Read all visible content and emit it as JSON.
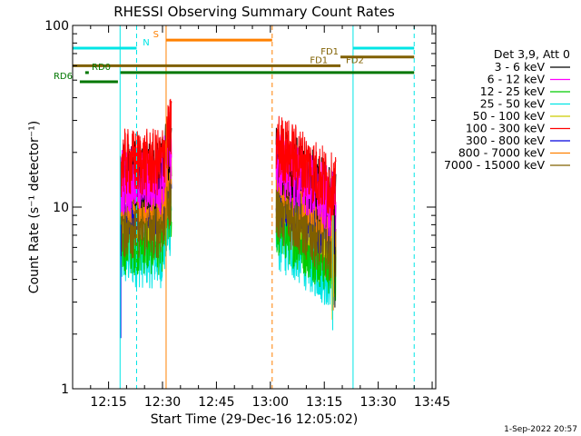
{
  "chart_data": {
    "type": "line",
    "title": "RHESSI Observing Summary Count Rates",
    "xlabel": "Start Time (29-Dec-16 12:05:02)",
    "ylabel": "Count Rate (s⁻¹ detector⁻¹)",
    "yscale": "log",
    "ylim": [
      1,
      100
    ],
    "xlim_minutes_from_12h": [
      5,
      106
    ],
    "x_ticks": [
      {
        "t": 15,
        "label": "12:15"
      },
      {
        "t": 30,
        "label": "12:30"
      },
      {
        "t": 45,
        "label": "12:45"
      },
      {
        "t": 60,
        "label": "13:00"
      },
      {
        "t": 75,
        "label": "13:15"
      },
      {
        "t": 90,
        "label": "13:30"
      },
      {
        "t": 105,
        "label": "13:45"
      }
    ],
    "y_ticks": [
      {
        "v": 1,
        "label": "1"
      },
      {
        "v": 10,
        "label": "10"
      },
      {
        "v": 100,
        "label": "100"
      }
    ],
    "legend_header": "Det 3,9, Att 0",
    "series": [
      {
        "name": "3 - 6 keV",
        "color": "#000000",
        "level": 15.0
      },
      {
        "name": "6 - 12 keV",
        "color": "#ff00ff",
        "level": 14.0
      },
      {
        "name": "12 - 25 keV",
        "color": "#00cc00",
        "level": 6.5
      },
      {
        "name": "25 - 50 keV",
        "color": "#00e5e5",
        "level": 5.5
      },
      {
        "name": "50 - 100 keV",
        "color": "#cccc00",
        "level": 10.0
      },
      {
        "name": "100 - 300 keV",
        "color": "#ff0000",
        "level": 17.5
      },
      {
        "name": "300 - 800 keV",
        "color": "#0000dd",
        "level": 10.0
      },
      {
        "name": "800 - 7000 keV",
        "color": "#ff8000",
        "level": 12.5
      },
      {
        "name": "7000 - 15000 keV",
        "color": "#806000",
        "level": 8.0
      }
    ],
    "data_intervals": [
      {
        "start": 18.3,
        "end": 32.5,
        "ramp": 0.35
      },
      {
        "start": 61.6,
        "end": 78.2,
        "ramp": 0.0
      }
    ],
    "vertical_lines": [
      {
        "t": 5.0,
        "color": "#00e5e5",
        "style": "solid"
      },
      {
        "t": 18.2,
        "color": "#00e5e5",
        "style": "solid"
      },
      {
        "t": 22.8,
        "color": "#00e5e5",
        "style": "dashed"
      },
      {
        "t": 31.0,
        "color": "#ff8000",
        "style": "solid"
      },
      {
        "t": 60.5,
        "color": "#ff8000",
        "style": "dashed"
      },
      {
        "t": 83.0,
        "color": "#00e5e5",
        "style": "solid"
      },
      {
        "t": 100.0,
        "color": "#00e5e5",
        "style": "dashed"
      }
    ],
    "flag_bars": [
      {
        "label": "N",
        "color": "#00e5e5",
        "t0": 5.0,
        "t1": 22.8,
        "v": 75,
        "label_t": 24.0,
        "label_side": "right"
      },
      {
        "label": "",
        "color": "#00e5e5",
        "t0": 83.0,
        "t1": 100.0,
        "v": 75,
        "label_t": 0,
        "label_side": "none"
      },
      {
        "label": "S",
        "color": "#ff8000",
        "t0": 31.0,
        "t1": 60.5,
        "v": 83,
        "label_t": 29.5,
        "label_side": "left"
      },
      {
        "label": "FD1",
        "color": "#806000",
        "t0": 5.0,
        "t1": 79.5,
        "v": 60,
        "label_t": 76.5,
        "label_side": "left"
      },
      {
        "label": "FD1",
        "color": "#806000",
        "t0": 79.5,
        "t1": 100.0,
        "v": 67,
        "label_t": 79.5,
        "label_side": "left"
      },
      {
        "label": "FD2",
        "color": "#806000",
        "t0": 0,
        "t1": 0,
        "v": 60,
        "label_t": 80.5,
        "label_side": "right"
      },
      {
        "label": "RD0",
        "color": "#007700",
        "t0": 8.5,
        "t1": 9.5,
        "v": 55,
        "label_t": 9.8,
        "label_side": "right"
      },
      {
        "label": "",
        "color": "#007700",
        "t0": 18.3,
        "t1": 100.0,
        "v": 55,
        "label_t": 0,
        "label_side": "none"
      },
      {
        "label": "RD6",
        "color": "#007700",
        "t0": 7.0,
        "t1": 17.6,
        "v": 49,
        "label_t": 5.5,
        "label_side": "left"
      }
    ]
  },
  "footer_timestamp": "1-Sep-2022 20:57"
}
